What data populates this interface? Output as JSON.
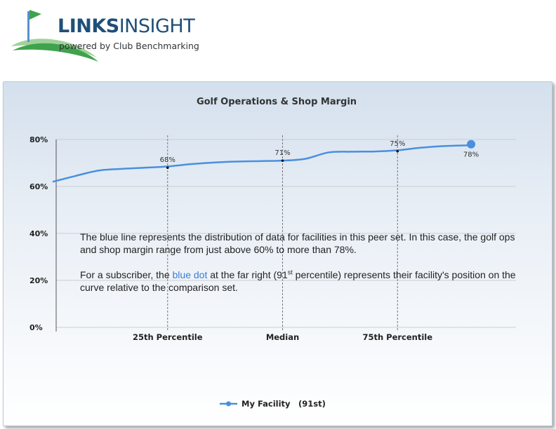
{
  "brand": {
    "name_part1": "LINKS",
    "name_part2": "INSIGHT",
    "tagline": "powered by Club Benchmarking"
  },
  "colors": {
    "series": "#4a8fe0",
    "brand_blue": "#1f4f78",
    "brand_green": "#3fa34d"
  },
  "chart_data": {
    "type": "line",
    "title": "Golf Operations & Shop Margin",
    "ylim": [
      0,
      80
    ],
    "yticks": [
      0,
      20,
      40,
      60,
      80
    ],
    "ytick_labels": [
      "0%",
      "20%",
      "40%",
      "60%",
      "80%"
    ],
    "xlim": [
      0,
      100
    ],
    "categories": [
      {
        "label": "25th Percentile",
        "x": 25
      },
      {
        "label": "Median",
        "x": 50
      },
      {
        "label": "75th Percentile",
        "x": 75
      }
    ],
    "series": [
      {
        "name": "My Facility",
        "legend_suffix": "(91st)",
        "x": [
          0,
          5,
          10,
          15,
          20,
          25,
          30,
          35,
          40,
          45,
          50,
          55,
          60,
          65,
          70,
          75,
          80,
          85,
          90,
          91
        ],
        "values": [
          62,
          64.5,
          66.8,
          67.5,
          68,
          68.5,
          69.5,
          70.2,
          70.6,
          70.8,
          71,
          71.8,
          74.5,
          74.8,
          74.9,
          75.4,
          76.5,
          77.2,
          77.5,
          77.6
        ]
      }
    ],
    "data_labels": [
      {
        "x": 25,
        "y": 68,
        "text": "68%"
      },
      {
        "x": 50,
        "y": 71,
        "text": "71%"
      },
      {
        "x": 75,
        "y": 75,
        "text": "75%"
      },
      {
        "x": 91,
        "y": 78,
        "text": "78%"
      }
    ],
    "highlight_point": {
      "x": 91,
      "y": 78
    },
    "grid": true,
    "legend_position": "bottom-center"
  },
  "note": {
    "p1": "The blue line represents the distribution of data for facilities in this peer set. In this case, the golf ops and shop margin range from just above 60% to more than 78%.",
    "p2_a": "For a subscriber, the ",
    "p2_blue": "blue dot",
    "p2_b": " at the far right (91",
    "p2_sup": "st",
    "p2_c": " percentile) represents their facility's position on the curve relative to the comparison set."
  }
}
